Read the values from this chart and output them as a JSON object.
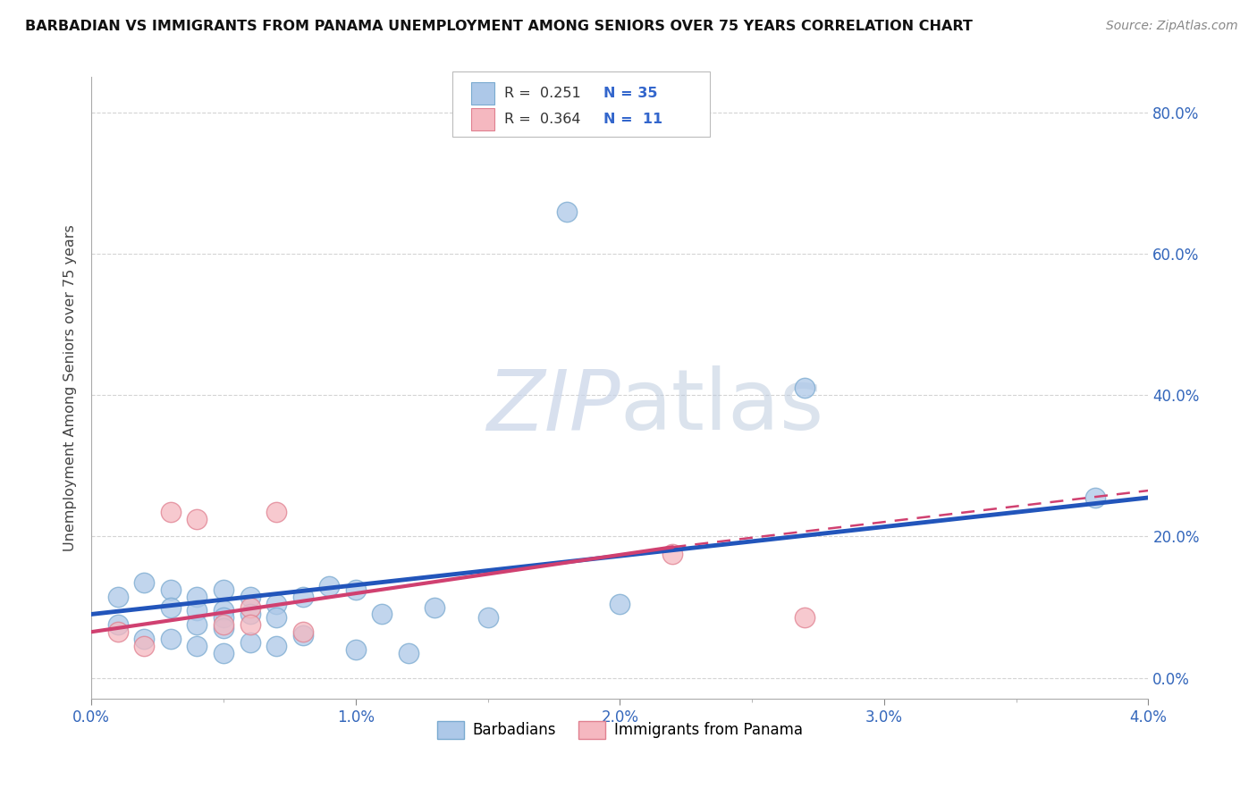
{
  "title": "BARBADIAN VS IMMIGRANTS FROM PANAMA UNEMPLOYMENT AMONG SENIORS OVER 75 YEARS CORRELATION CHART",
  "source": "Source: ZipAtlas.com",
  "ylabel": "Unemployment Among Seniors over 75 years",
  "xlim": [
    0.0,
    0.04
  ],
  "ylim": [
    -0.03,
    0.85
  ],
  "barbadians_color": "#adc8e8",
  "barbadians_edge": "#7aaad0",
  "panama_color": "#f5b8c0",
  "panama_edge": "#e08090",
  "barbadians_line_color": "#2255bb",
  "panama_line_color": "#d04070",
  "blue_scatter_x": [
    0.001,
    0.001,
    0.002,
    0.002,
    0.003,
    0.003,
    0.003,
    0.004,
    0.004,
    0.004,
    0.004,
    0.005,
    0.005,
    0.005,
    0.005,
    0.005,
    0.006,
    0.006,
    0.006,
    0.007,
    0.007,
    0.007,
    0.008,
    0.008,
    0.009,
    0.01,
    0.01,
    0.011,
    0.012,
    0.013,
    0.015,
    0.018,
    0.02,
    0.027,
    0.038
  ],
  "blue_scatter_y": [
    0.115,
    0.075,
    0.135,
    0.055,
    0.125,
    0.1,
    0.055,
    0.115,
    0.095,
    0.075,
    0.045,
    0.125,
    0.095,
    0.085,
    0.07,
    0.035,
    0.115,
    0.09,
    0.05,
    0.105,
    0.085,
    0.045,
    0.115,
    0.06,
    0.13,
    0.125,
    0.04,
    0.09,
    0.035,
    0.1,
    0.085,
    0.66,
    0.105,
    0.41,
    0.255
  ],
  "pink_scatter_x": [
    0.001,
    0.002,
    0.003,
    0.004,
    0.005,
    0.006,
    0.006,
    0.007,
    0.008,
    0.022,
    0.027
  ],
  "pink_scatter_y": [
    0.065,
    0.045,
    0.235,
    0.225,
    0.075,
    0.1,
    0.075,
    0.235,
    0.065,
    0.175,
    0.085
  ],
  "blue_line_x": [
    0.0,
    0.04
  ],
  "blue_line_y": [
    0.09,
    0.255
  ],
  "pink_solid_line_x": [
    0.0,
    0.022
  ],
  "pink_solid_line_y": [
    0.065,
    0.185
  ],
  "pink_dashed_line_x": [
    0.022,
    0.04
  ],
  "pink_dashed_line_y": [
    0.185,
    0.265
  ],
  "watermark_zip": "ZIP",
  "watermark_atlas": "atlas",
  "grid_color": "#d0d0d0",
  "bg_color": "#ffffff"
}
